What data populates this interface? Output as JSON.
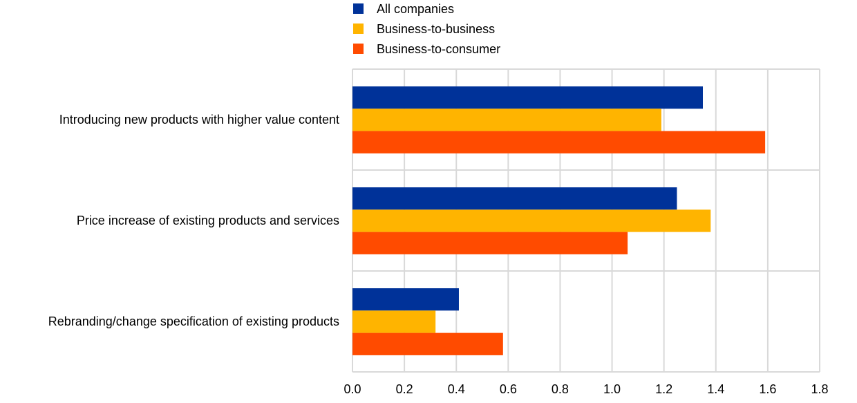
{
  "chart_data": {
    "type": "bar",
    "orientation": "horizontal",
    "title": "",
    "xlabel": "",
    "ylabel": "",
    "xlim": [
      0,
      1.8
    ],
    "xticks": [
      "0.0",
      "0.2",
      "0.4",
      "0.6",
      "0.8",
      "1.0",
      "1.2",
      "1.4",
      "1.6",
      "1.8"
    ],
    "grid": true,
    "legend_position": "top",
    "categories": [
      "Introducing new products with higher value content",
      "Price increase of existing products and services",
      "Rebranding/change specification of existing products"
    ],
    "series": [
      {
        "name": "All companies",
        "color": "#003299",
        "values": [
          1.35,
          1.25,
          0.41
        ]
      },
      {
        "name": "Business-to-business",
        "color": "#FFB400",
        "values": [
          1.19,
          1.38,
          0.32
        ]
      },
      {
        "name": "Business-to-consumer",
        "color": "#FF4B00",
        "values": [
          1.59,
          1.06,
          0.58
        ]
      }
    ]
  }
}
